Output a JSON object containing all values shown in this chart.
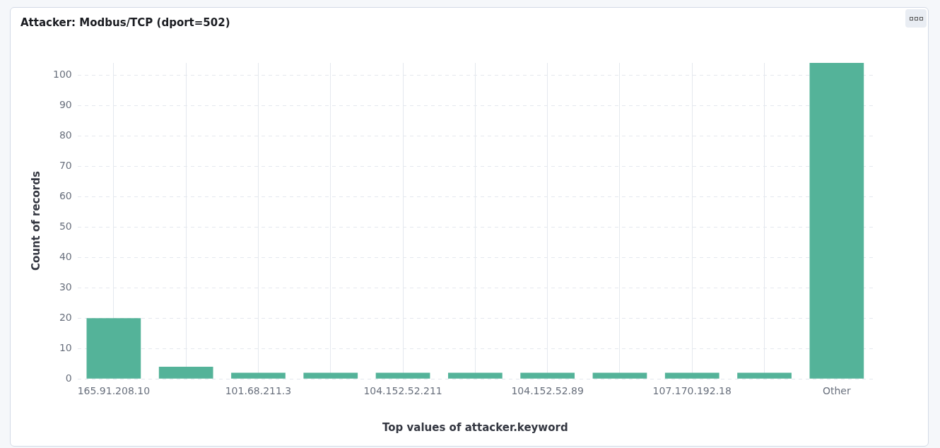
{
  "chart_data": {
    "type": "bar",
    "title": "Attacker: Modbus/TCP (dport=502)",
    "xlabel": "Top values of attacker.keyword",
    "ylabel": "Count of records",
    "categories": [
      "165.91.208.10",
      null,
      "101.68.211.3",
      null,
      "104.152.52.211",
      null,
      "104.152.52.89",
      null,
      "107.170.192.18",
      null,
      "Other"
    ],
    "values": [
      20,
      4,
      2,
      2,
      2,
      2,
      2,
      2,
      2,
      2,
      104
    ],
    "color": "#54b399",
    "ylim": [
      0,
      104
    ],
    "yticks": [
      0,
      10,
      20,
      30,
      40,
      50,
      60,
      70,
      80,
      90,
      100
    ],
    "grid": true,
    "legend": false
  }
}
